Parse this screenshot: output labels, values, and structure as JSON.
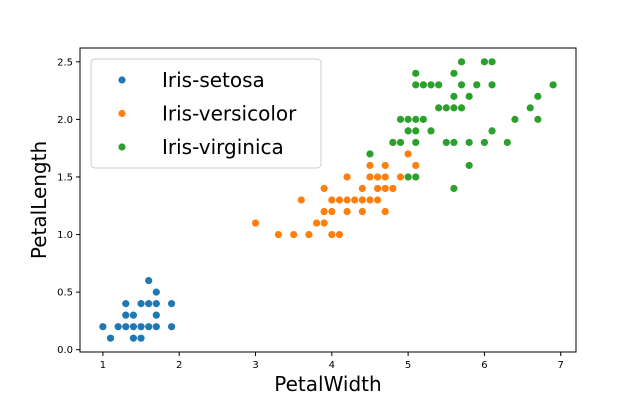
{
  "chart_data": {
    "type": "scatter",
    "xlabel": "PetalWidth",
    "ylabel": "PetalLength",
    "xlim": [
      0.7,
      7.2
    ],
    "ylim": [
      -0.02,
      2.62
    ],
    "xticks": [
      1,
      2,
      3,
      4,
      5,
      6,
      7
    ],
    "yticks": [
      0.0,
      0.5,
      1.0,
      1.5,
      2.0,
      2.5
    ],
    "xtick_labels": [
      "1",
      "2",
      "3",
      "4",
      "5",
      "6",
      "7"
    ],
    "ytick_labels": [
      "0.0",
      "0.5",
      "1.0",
      "1.5",
      "2.0",
      "2.5"
    ],
    "legend_position": "top-left",
    "grid": false,
    "series": [
      {
        "name": "Iris-setosa",
        "color": "#1f77b4",
        "points": [
          [
            1.0,
            0.2
          ],
          [
            1.1,
            0.1
          ],
          [
            1.2,
            0.2
          ],
          [
            1.3,
            0.2
          ],
          [
            1.3,
            0.3
          ],
          [
            1.3,
            0.4
          ],
          [
            1.4,
            0.1
          ],
          [
            1.4,
            0.2
          ],
          [
            1.4,
            0.3
          ],
          [
            1.5,
            0.1
          ],
          [
            1.5,
            0.2
          ],
          [
            1.5,
            0.4
          ],
          [
            1.6,
            0.2
          ],
          [
            1.6,
            0.4
          ],
          [
            1.6,
            0.6
          ],
          [
            1.7,
            0.2
          ],
          [
            1.7,
            0.3
          ],
          [
            1.7,
            0.4
          ],
          [
            1.7,
            0.5
          ],
          [
            1.9,
            0.2
          ],
          [
            1.9,
            0.4
          ]
        ]
      },
      {
        "name": "Iris-versicolor",
        "color": "#ff7f0e",
        "points": [
          [
            3.0,
            1.1
          ],
          [
            3.3,
            1.0
          ],
          [
            3.5,
            1.0
          ],
          [
            3.6,
            1.3
          ],
          [
            3.7,
            1.0
          ],
          [
            3.8,
            1.1
          ],
          [
            3.9,
            1.1
          ],
          [
            3.9,
            1.2
          ],
          [
            3.9,
            1.4
          ],
          [
            4.0,
            1.0
          ],
          [
            4.0,
            1.2
          ],
          [
            4.0,
            1.3
          ],
          [
            4.1,
            1.0
          ],
          [
            4.1,
            1.3
          ],
          [
            4.2,
            1.2
          ],
          [
            4.2,
            1.3
          ],
          [
            4.2,
            1.5
          ],
          [
            4.3,
            1.3
          ],
          [
            4.4,
            1.2
          ],
          [
            4.4,
            1.3
          ],
          [
            4.4,
            1.4
          ],
          [
            4.5,
            1.3
          ],
          [
            4.5,
            1.5
          ],
          [
            4.5,
            1.6
          ],
          [
            4.6,
            1.3
          ],
          [
            4.6,
            1.4
          ],
          [
            4.6,
            1.5
          ],
          [
            4.7,
            1.2
          ],
          [
            4.7,
            1.4
          ],
          [
            4.7,
            1.5
          ],
          [
            4.7,
            1.6
          ],
          [
            4.8,
            1.4
          ],
          [
            4.8,
            1.8
          ],
          [
            4.9,
            1.5
          ],
          [
            5.0,
            1.7
          ],
          [
            5.1,
            1.6
          ]
        ]
      },
      {
        "name": "Iris-virginica",
        "color": "#2ca02c",
        "points": [
          [
            4.5,
            1.7
          ],
          [
            4.8,
            1.8
          ],
          [
            4.9,
            1.8
          ],
          [
            4.9,
            2.0
          ],
          [
            5.0,
            1.5
          ],
          [
            5.0,
            1.9
          ],
          [
            5.0,
            2.0
          ],
          [
            5.1,
            1.5
          ],
          [
            5.1,
            1.8
          ],
          [
            5.1,
            1.9
          ],
          [
            5.1,
            2.0
          ],
          [
            5.1,
            2.3
          ],
          [
            5.1,
            2.4
          ],
          [
            5.2,
            2.0
          ],
          [
            5.2,
            2.3
          ],
          [
            5.3,
            1.9
          ],
          [
            5.3,
            2.3
          ],
          [
            5.4,
            2.1
          ],
          [
            5.4,
            2.3
          ],
          [
            5.5,
            1.8
          ],
          [
            5.5,
            2.1
          ],
          [
            5.6,
            1.4
          ],
          [
            5.6,
            1.8
          ],
          [
            5.6,
            2.1
          ],
          [
            5.6,
            2.2
          ],
          [
            5.6,
            2.4
          ],
          [
            5.7,
            2.1
          ],
          [
            5.7,
            2.3
          ],
          [
            5.7,
            2.5
          ],
          [
            5.8,
            1.6
          ],
          [
            5.8,
            1.8
          ],
          [
            5.8,
            2.2
          ],
          [
            5.9,
            2.3
          ],
          [
            6.0,
            1.8
          ],
          [
            6.0,
            2.5
          ],
          [
            6.1,
            1.9
          ],
          [
            6.1,
            2.3
          ],
          [
            6.1,
            2.5
          ],
          [
            6.3,
            1.8
          ],
          [
            6.4,
            2.0
          ],
          [
            6.6,
            2.1
          ],
          [
            6.7,
            2.0
          ],
          [
            6.7,
            2.2
          ],
          [
            6.9,
            2.3
          ]
        ]
      }
    ]
  }
}
